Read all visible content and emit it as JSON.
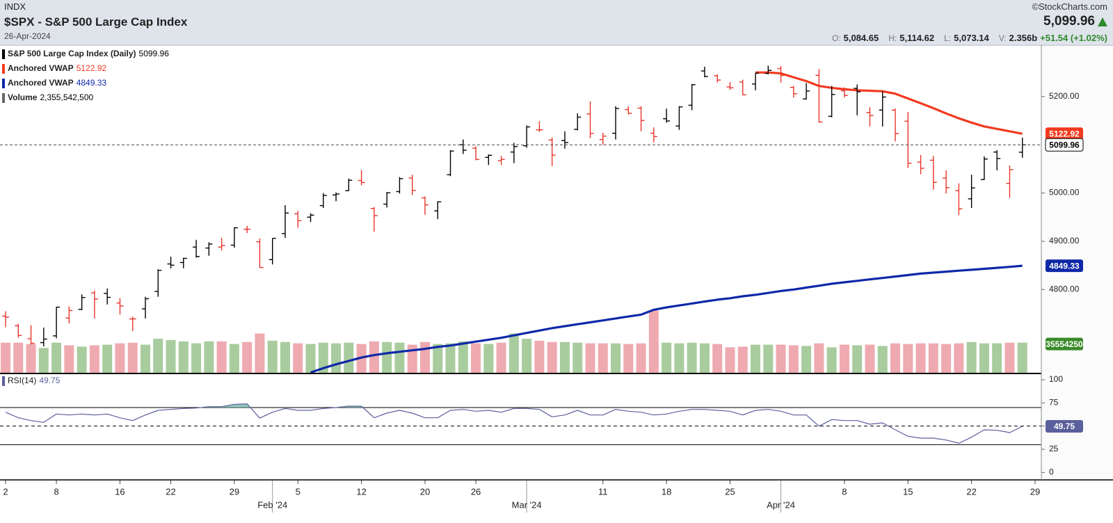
{
  "header": {
    "exchange": "INDX",
    "title": "$SPX - S&P 500 Large Cap Index",
    "date": "26-Apr-2024",
    "copyright": "©StockCharts.com",
    "last": "5,099.96",
    "stats": [
      {
        "label": "O:",
        "value": "5,084.65"
      },
      {
        "label": "H:",
        "value": "5,114.62"
      },
      {
        "label": "L:",
        "value": "5,073.14"
      },
      {
        "label": "V:",
        "value": "2.356b"
      }
    ],
    "change": "+51.54 (+1.02%)"
  },
  "chart_data": [
    {
      "type": "ohlc",
      "x": [
        "2024-01-02",
        "2024-01-03",
        "2024-01-04",
        "2024-01-05",
        "2024-01-08",
        "2024-01-09",
        "2024-01-10",
        "2024-01-11",
        "2024-01-12",
        "2024-01-16",
        "2024-01-17",
        "2024-01-18",
        "2024-01-19",
        "2024-01-22",
        "2024-01-23",
        "2024-01-24",
        "2024-01-25",
        "2024-01-26",
        "2024-01-29",
        "2024-01-30",
        "2024-01-31",
        "2024-02-01",
        "2024-02-02",
        "2024-02-05",
        "2024-02-06",
        "2024-02-07",
        "2024-02-08",
        "2024-02-09",
        "2024-02-12",
        "2024-02-13",
        "2024-02-14",
        "2024-02-15",
        "2024-02-16",
        "2024-02-20",
        "2024-02-21",
        "2024-02-22",
        "2024-02-23",
        "2024-02-26",
        "2024-02-27",
        "2024-02-28",
        "2024-02-29",
        "2024-03-01",
        "2024-03-04",
        "2024-03-05",
        "2024-03-06",
        "2024-03-07",
        "2024-03-08",
        "2024-03-11",
        "2024-03-12",
        "2024-03-13",
        "2024-03-14",
        "2024-03-15",
        "2024-03-18",
        "2024-03-19",
        "2024-03-20",
        "2024-03-21",
        "2024-03-22",
        "2024-03-25",
        "2024-03-26",
        "2024-03-27",
        "2024-03-28",
        "2024-04-01",
        "2024-04-02",
        "2024-04-03",
        "2024-04-04",
        "2024-04-05",
        "2024-04-08",
        "2024-04-09",
        "2024-04-10",
        "2024-04-11",
        "2024-04-12",
        "2024-04-15",
        "2024-04-16",
        "2024-04-17",
        "2024-04-18",
        "2024-04-19",
        "2024-04-22",
        "2024-04-23",
        "2024-04-24",
        "2024-04-25",
        "2024-04-26"
      ],
      "series": [
        {
          "name": "S&P 500 Large Cap Index (Daily)",
          "color": "#000000",
          "down_color": "#e8342a",
          "open": [
            4745,
            4725,
            4698,
            4690,
            4704,
            4741,
            4759,
            4793,
            4792,
            4772,
            4739,
            4760,
            4796,
            4853,
            4856,
            4888,
            4886,
            4888,
            4892,
            4925,
            4899,
            4862,
            4916,
            4957,
            4950,
            4974,
            4996,
            5005,
            5026,
            4968,
            4977,
            5003,
            5031,
            4990,
            4963,
            5038,
            5100,
            5093,
            5074,
            5067,
            5085,
            5098,
            5131,
            5110,
            5109,
            5132,
            5164,
            5111,
            5124,
            5173,
            5176,
            5124,
            5154,
            5139,
            5182,
            5253,
            5243,
            5220,
            5230,
            5226,
            5248,
            5258,
            5219,
            5195,
            5244,
            5159,
            5212,
            5217,
            5167,
            5172,
            5172,
            5149,
            5064,
            5068,
            5031,
            5005,
            4988,
            5028,
            5085,
            5020,
            5084.65
          ],
          "high": [
            4755,
            4729,
            4726,
            4721,
            4764,
            4765,
            4790,
            4798,
            4802,
            4782,
            4744,
            4785,
            4842,
            4868,
            4866,
            4903,
            4898,
            4907,
            4929,
            4932,
            4906,
            4906,
            4975,
            4963,
            4958,
            5000,
            5001,
            5030,
            5048,
            4971,
            5002,
            5033,
            5038,
            4993,
            4983,
            5089,
            5111,
            5097,
            5080,
            5077,
            5104,
            5140,
            5149,
            5115,
            5128,
            5165,
            5190,
            5125,
            5180,
            5180,
            5180,
            5136,
            5175,
            5180,
            5226,
            5262,
            5246,
            5230,
            5235,
            5249,
            5264,
            5263,
            5222,
            5228,
            5257,
            5222,
            5219,
            5225,
            5178,
            5211,
            5175,
            5168,
            5079,
            5077,
            5047,
            5020,
            5038,
            5076,
            5089,
            5057,
            5114.62
          ],
          "low": [
            4722,
            4700,
            4686,
            4682,
            4699,
            4730,
            4757,
            4740,
            4769,
            4748,
            4714,
            4740,
            4785,
            4844,
            4844,
            4866,
            4870,
            4881,
            4887,
            4917,
            4845,
            4852,
            4907,
            4928,
            4940,
            4969,
            4983,
            5004,
            5016,
            4920,
            4970,
            4999,
            4996,
            4955,
            4946,
            5035,
            5081,
            5068,
            5058,
            5058,
            5062,
            5094,
            5127,
            5056,
            5092,
            5130,
            5114,
            5100,
            5111,
            5163,
            5128,
            5105,
            5146,
            5131,
            5172,
            5240,
            5229,
            5214,
            5203,
            5213,
            5246,
            5229,
            5198,
            5194,
            5146,
            5157,
            5198,
            5161,
            5138,
            5138,
            5107,
            5052,
            5039,
            5007,
            4999,
            4954,
            4969,
            5027,
            5047,
            4990,
            5073.14
          ],
          "close": [
            4742.83,
            4704.81,
            4688.68,
            4697.24,
            4763.54,
            4756.5,
            4783.45,
            4780.24,
            4783.83,
            4765.98,
            4739.21,
            4780.94,
            4839.81,
            4850.43,
            4864.6,
            4868.55,
            4894.16,
            4890.97,
            4927.93,
            4924.97,
            4845.65,
            4906.19,
            4958.61,
            4942.81,
            4954.23,
            4995.06,
            4997.91,
            5026.61,
            5021.84,
            4953.17,
            5000.62,
            5029.73,
            5005.57,
            4975.51,
            4981.8,
            5087.03,
            5088.8,
            5069.53,
            5078.18,
            5069.76,
            5096.27,
            5137.08,
            5130.95,
            5078.65,
            5104.76,
            5157.36,
            5123.69,
            5117.94,
            5175.27,
            5165.31,
            5150.48,
            5117.09,
            5149.42,
            5178.51,
            5224.62,
            5241.53,
            5234.18,
            5218.19,
            5203.58,
            5248.49,
            5254.35,
            5243.77,
            5205.81,
            5211.49,
            5147.21,
            5204.34,
            5202.39,
            5209.91,
            5160.64,
            5199.06,
            5123.41,
            5061.82,
            5051.41,
            5022.21,
            5011.12,
            4967.23,
            5010.6,
            5070.55,
            5071.63,
            5048.42,
            5099.96
          ]
        },
        {
          "name": "Anchored VWAP",
          "color": "#f23a1f",
          "values": [
            null,
            null,
            null,
            null,
            null,
            null,
            null,
            null,
            null,
            null,
            null,
            null,
            null,
            null,
            null,
            null,
            null,
            null,
            null,
            null,
            null,
            null,
            null,
            null,
            null,
            null,
            null,
            null,
            null,
            null,
            null,
            null,
            null,
            null,
            null,
            null,
            null,
            null,
            null,
            null,
            null,
            null,
            null,
            null,
            null,
            null,
            null,
            null,
            null,
            null,
            null,
            null,
            null,
            null,
            null,
            null,
            null,
            null,
            null,
            5250,
            5250,
            5248,
            5240,
            5232,
            5222,
            5218,
            5215,
            5213,
            5212,
            5211,
            5206,
            5196,
            5186,
            5176,
            5165,
            5155,
            5146,
            5138,
            5133,
            5128,
            5122.92
          ]
        },
        {
          "name": "Anchored VWAP",
          "color": "#0f28a8",
          "values": [
            null,
            null,
            null,
            null,
            null,
            null,
            null,
            null,
            null,
            null,
            null,
            null,
            null,
            null,
            null,
            null,
            null,
            null,
            null,
            null,
            null,
            null,
            null,
            null,
            4628,
            4637,
            4645,
            4652,
            4659,
            4664,
            4668,
            4671,
            4674,
            4677,
            4681,
            4684,
            4688,
            4692,
            4696,
            4700,
            4705,
            4710,
            4715,
            4720,
            4724,
            4728,
            4732,
            4736,
            4740,
            4744,
            4748,
            4758,
            4763,
            4767,
            4771,
            4775,
            4779,
            4782,
            4786,
            4789,
            4793,
            4797,
            4800,
            4804,
            4808,
            4812,
            4815,
            4818,
            4821,
            4824,
            4827,
            4830,
            4833,
            4835,
            4837,
            4839,
            4841,
            4843,
            4845,
            4847,
            4849.33
          ]
        }
      ],
      "volume": {
        "name": "Volume",
        "up_color": "#a8cc9e",
        "down_color": "#eeaab0",
        "tag_color": "#3a8a2a",
        "value_label": "2,355,542,500",
        "ylim": [
          0,
          25000000000
        ],
        "values": [
          2350000000,
          2350000000,
          2250000000,
          1950000000,
          2350000000,
          2150000000,
          2050000000,
          2150000000,
          2200000000,
          2300000000,
          2350000000,
          2200000000,
          2650000000,
          2550000000,
          2450000000,
          2300000000,
          2450000000,
          2450000000,
          2250000000,
          2400000000,
          3050000000,
          2500000000,
          2400000000,
          2300000000,
          2250000000,
          2350000000,
          2300000000,
          2350000000,
          2250000000,
          2450000000,
          2400000000,
          2350000000,
          2200000000,
          2400000000,
          2250000000,
          2300000000,
          2450000000,
          2300000000,
          2250000000,
          2350000000,
          3050000000,
          2650000000,
          2500000000,
          2400000000,
          2400000000,
          2350000000,
          2300000000,
          2300000000,
          2300000000,
          2250000000,
          2300000000,
          4800000000,
          2350000000,
          2300000000,
          2350000000,
          2300000000,
          2250000000,
          2000000000,
          2050000000,
          2200000000,
          2200000000,
          2200000000,
          2150000000,
          2100000000,
          2300000000,
          2000000000,
          2200000000,
          2150000000,
          2200000000,
          2100000000,
          2300000000,
          2250000000,
          2300000000,
          2300000000,
          2250000000,
          2300000000,
          2400000000,
          2300000000,
          2300000000,
          2350000000,
          2355542500
        ]
      },
      "ylim": [
        4626,
        5305
      ],
      "yticks": [
        {
          "value": 4800,
          "label": "4800.00"
        },
        {
          "value": 4900,
          "label": "4900.00"
        },
        {
          "value": 5000,
          "label": "5000.00"
        },
        {
          "value": 5200,
          "label": "5200.00"
        }
      ],
      "xticks": [
        {
          "value": "2024-01-02",
          "label": "2"
        },
        {
          "value": "2024-01-08",
          "label": "8"
        },
        {
          "value": "2024-01-16",
          "label": "16"
        },
        {
          "value": "2024-01-22",
          "label": "22"
        },
        {
          "value": "2024-01-29",
          "label": "29"
        },
        {
          "value": "2024-02-05",
          "label": "5"
        },
        {
          "value": "2024-02-12",
          "label": "12"
        },
        {
          "value": "2024-02-20",
          "label": "20"
        },
        {
          "value": "2024-02-26",
          "label": "26"
        },
        {
          "value": "2024-03-11",
          "label": "11"
        },
        {
          "value": "2024-03-18",
          "label": "18"
        },
        {
          "value": "2024-03-25",
          "label": "25"
        },
        {
          "value": "2024-04-08",
          "label": "8"
        },
        {
          "value": "2024-04-15",
          "label": "15"
        },
        {
          "value": "2024-04-22",
          "label": "22"
        },
        {
          "value": "2024-04-29",
          "label": "29"
        }
      ],
      "month_ticks": [
        {
          "value": "2024-02-01",
          "label": "Feb '24"
        },
        {
          "value": "2024-03-01",
          "label": "Mar '24"
        },
        {
          "value": "2024-04-01",
          "label": "Apr '24"
        }
      ]
    },
    {
      "type": "line",
      "series": [
        {
          "name": "RSI(14)",
          "color": "#5b5f9c",
          "fill": "#6fb0a6",
          "values": [
            65,
            59,
            56,
            54,
            63,
            62,
            63,
            62,
            63,
            59,
            56,
            62,
            67,
            68,
            69,
            69.5,
            71,
            71,
            73.5,
            74,
            58.6,
            65,
            69,
            67,
            67,
            69,
            70,
            71.5,
            71.5,
            59,
            64,
            67,
            64,
            59,
            59,
            67,
            68,
            66,
            67,
            65,
            69,
            69,
            68,
            60,
            62,
            67,
            62,
            62,
            68,
            66,
            65,
            62,
            63,
            66,
            68,
            68,
            67,
            66,
            62,
            67,
            68,
            66,
            62,
            62,
            50,
            57,
            56,
            56,
            52,
            53.5,
            46,
            39,
            37,
            37,
            35,
            31.5,
            38,
            46,
            45.5,
            43,
            49.75
          ]
        }
      ],
      "ylim": [
        -8,
        106
      ],
      "yticks": [
        0,
        25,
        50,
        75,
        100
      ],
      "overbought": 70,
      "oversold": 30,
      "midline": 50
    }
  ]
}
